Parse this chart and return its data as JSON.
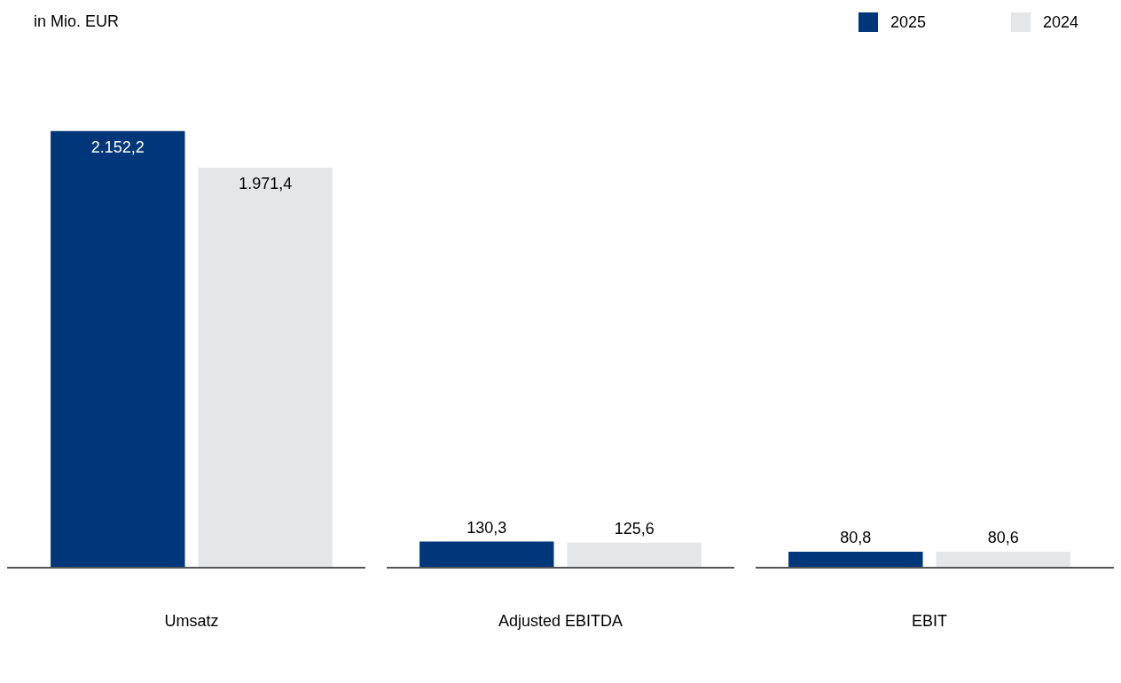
{
  "chart_data": {
    "type": "bar",
    "annotations": [
      "in Mio. EUR"
    ],
    "categories": [
      "Umsatz",
      "Adjusted EBITDA",
      "EBIT"
    ],
    "series": [
      {
        "name": "2025",
        "color": "#00377a",
        "values": [
          2152.2,
          130.3,
          80.8
        ],
        "value_labels": [
          "2.152,2",
          "130,3",
          "80,8"
        ]
      },
      {
        "name": "2024",
        "color": "#e5e6e8",
        "values": [
          1971.4,
          125.6,
          80.6
        ],
        "value_labels": [
          "1.971,4",
          "125,6",
          "80,6"
        ]
      }
    ],
    "legend": "top right"
  }
}
